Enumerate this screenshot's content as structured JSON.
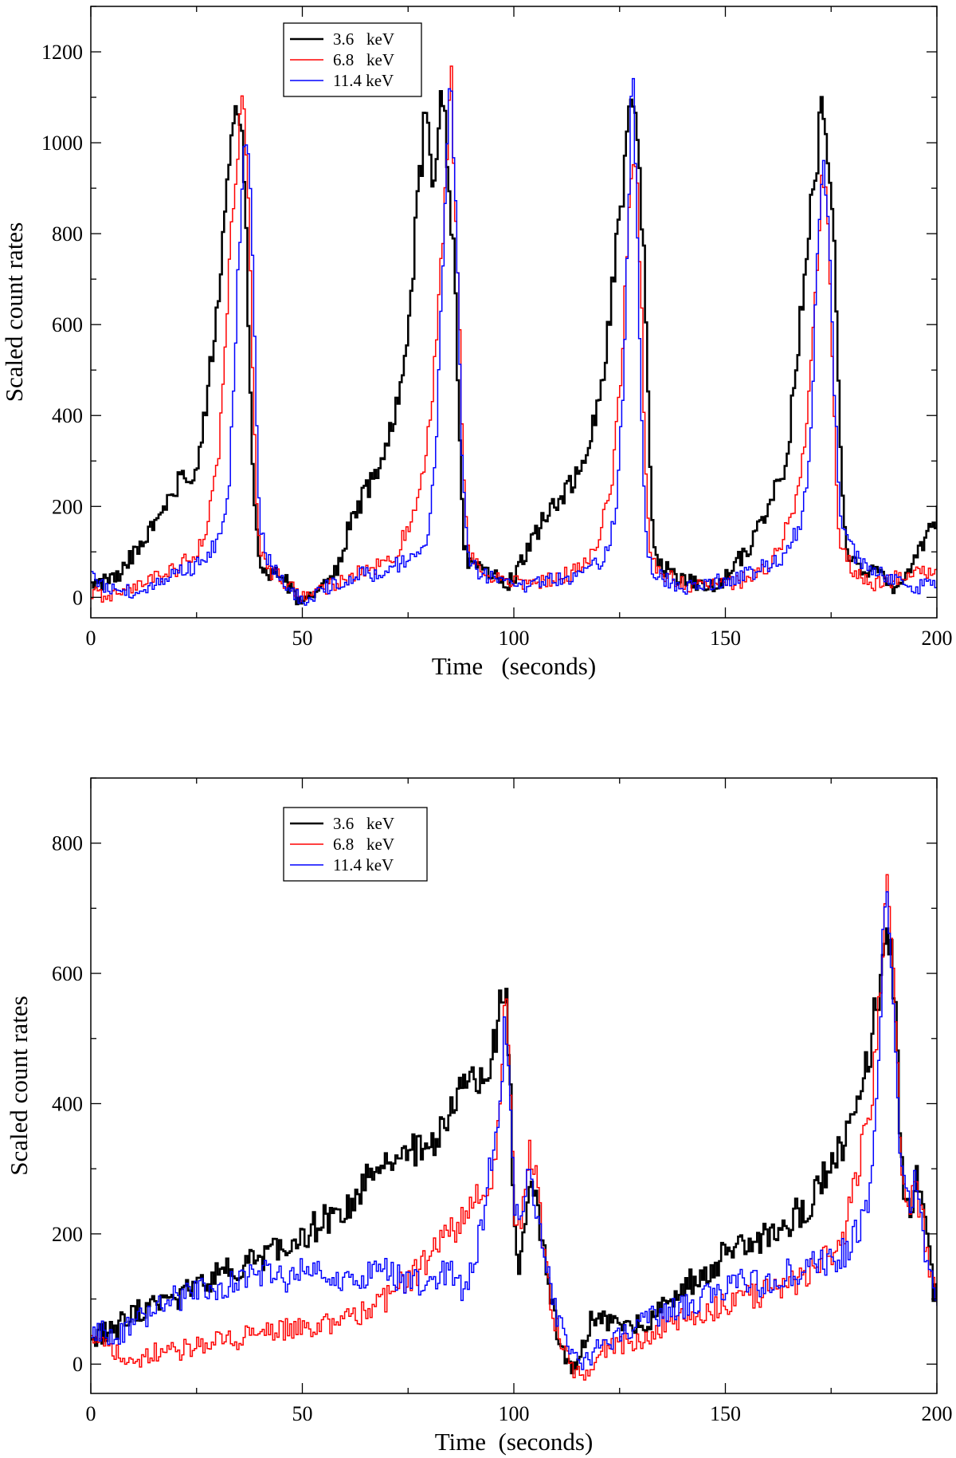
{
  "chart_data": [
    {
      "type": "line",
      "panel": "top",
      "title": "",
      "xlabel": "Time   (seconds)",
      "ylabel": "Scaled count rates",
      "xlim": [
        0,
        200
      ],
      "ylim": [
        -45,
        1300
      ],
      "x_ticks": [
        0,
        50,
        100,
        150,
        200
      ],
      "y_ticks": [
        0,
        200,
        400,
        600,
        800,
        1000,
        1200
      ],
      "legend_position": "top-left",
      "series": [
        {
          "name": "3.6   keV",
          "color": "#000000",
          "step": 0.5,
          "width": 2.6,
          "x": [
            0,
            4,
            8,
            10,
            14,
            18,
            20,
            22,
            24,
            26,
            27,
            28,
            29,
            30,
            31,
            32,
            33,
            34,
            35,
            36,
            37,
            38,
            39,
            40,
            41,
            45,
            48,
            50,
            55,
            58,
            60,
            62,
            65,
            68,
            70,
            72,
            74,
            75,
            76,
            77,
            78,
            79,
            80,
            81,
            82,
            83,
            84,
            85,
            86,
            87,
            88,
            89,
            90,
            95,
            98,
            100,
            105,
            108,
            110,
            112,
            114,
            116,
            118,
            120,
            121,
            122,
            123,
            124,
            125,
            126,
            127,
            128,
            129,
            130,
            131,
            132,
            133,
            134,
            140,
            143,
            145,
            150,
            152,
            155,
            158,
            160,
            162,
            164,
            165,
            166,
            167,
            168,
            169,
            170,
            171,
            172,
            173,
            174,
            175,
            176,
            177,
            178,
            180,
            185,
            188,
            190,
            195,
            200
          ],
          "y": [
            20,
            40,
            60,
            100,
            140,
            200,
            240,
            270,
            240,
            320,
            400,
            480,
            560,
            650,
            780,
            900,
            1000,
            1080,
            1040,
            1000,
            700,
            350,
            150,
            90,
            60,
            50,
            10,
            -20,
            30,
            60,
            120,
            180,
            230,
            280,
            340,
            400,
            500,
            600,
            700,
            840,
            940,
            1050,
            1020,
            900,
            960,
            1120,
            1000,
            850,
            750,
            400,
            130,
            90,
            70,
            50,
            30,
            40,
            140,
            180,
            200,
            230,
            250,
            290,
            340,
            420,
            460,
            560,
            640,
            760,
            860,
            900,
            1030,
            1110,
            1000,
            900,
            700,
            350,
            130,
            70,
            40,
            30,
            20,
            40,
            70,
            100,
            150,
            200,
            250,
            290,
            340,
            440,
            540,
            640,
            740,
            850,
            900,
            1000,
            1110,
            1000,
            900,
            700,
            400,
            150,
            70,
            60,
            40,
            20,
            90,
            180
          ]
        },
        {
          "name": "6.8   keV",
          "color": "#ff0000",
          "step": 0.5,
          "width": 1.5,
          "x": [
            0,
            5,
            10,
            15,
            20,
            25,
            28,
            29,
            30,
            31,
            32,
            33,
            34,
            35,
            36,
            37,
            38,
            39,
            40,
            42,
            45,
            50,
            55,
            60,
            65,
            70,
            72,
            74,
            76,
            78,
            79,
            80,
            81,
            82,
            83,
            84,
            85,
            86,
            87,
            88,
            89,
            90,
            95,
            100,
            105,
            110,
            115,
            118,
            120,
            121,
            122,
            123,
            124,
            125,
            126,
            127,
            128,
            129,
            130,
            131,
            132,
            133,
            135,
            140,
            145,
            150,
            155,
            160,
            162,
            164,
            166,
            168,
            169,
            170,
            171,
            172,
            173,
            174,
            175,
            176,
            177,
            180,
            185,
            190,
            195,
            200
          ],
          "y": [
            10,
            0,
            20,
            40,
            60,
            100,
            180,
            250,
            300,
            420,
            580,
            760,
            880,
            1000,
            1080,
            950,
            600,
            250,
            100,
            60,
            40,
            0,
            20,
            40,
            60,
            80,
            100,
            130,
            170,
            230,
            300,
            380,
            480,
            620,
            780,
            920,
            1200,
            900,
            700,
            300,
            120,
            80,
            50,
            30,
            30,
            40,
            60,
            90,
            120,
            160,
            200,
            250,
            330,
            450,
            620,
            840,
            1000,
            950,
            700,
            320,
            120,
            80,
            50,
            30,
            20,
            30,
            40,
            70,
            90,
            140,
            200,
            280,
            360,
            460,
            620,
            800,
            950,
            850,
            650,
            300,
            110,
            60,
            30,
            40,
            50,
            60
          ]
        },
        {
          "name": "11.4 keV",
          "color": "#0000ff",
          "step": 0.5,
          "width": 1.5,
          "x": [
            0,
            5,
            10,
            15,
            20,
            25,
            30,
            32,
            33,
            34,
            35,
            36,
            37,
            38,
            39,
            40,
            42,
            45,
            50,
            55,
            60,
            65,
            70,
            75,
            78,
            80,
            81,
            82,
            83,
            84,
            85,
            86,
            87,
            88,
            89,
            90,
            95,
            100,
            105,
            110,
            115,
            120,
            122,
            124,
            125,
            126,
            127,
            128,
            129,
            130,
            131,
            132,
            133,
            135,
            140,
            145,
            150,
            155,
            160,
            165,
            168,
            170,
            171,
            172,
            173,
            174,
            175,
            176,
            177,
            180,
            185,
            190,
            195,
            200
          ],
          "y": [
            40,
            20,
            10,
            30,
            50,
            70,
            120,
            180,
            300,
            500,
            750,
            950,
            1010,
            850,
            450,
            150,
            80,
            40,
            -10,
            20,
            40,
            50,
            60,
            80,
            110,
            150,
            250,
            420,
            700,
            950,
            1150,
            950,
            600,
            250,
            100,
            70,
            40,
            20,
            30,
            40,
            50,
            70,
            110,
            180,
            300,
            500,
            800,
            1170,
            900,
            500,
            150,
            80,
            60,
            40,
            20,
            30,
            40,
            50,
            70,
            100,
            180,
            300,
            550,
            800,
            990,
            900,
            700,
            400,
            200,
            100,
            60,
            40,
            20,
            30
          ]
        }
      ]
    },
    {
      "type": "line",
      "panel": "bottom",
      "title": "",
      "xlabel": "Time  (seconds)",
      "ylabel": "Scaled count rates",
      "xlim": [
        0,
        200
      ],
      "ylim": [
        -45,
        900
      ],
      "x_ticks": [
        0,
        50,
        100,
        150,
        200
      ],
      "y_ticks": [
        0,
        200,
        400,
        600,
        800
      ],
      "legend_position": "top-left",
      "series": [
        {
          "name": "3.6   keV",
          "color": "#000000",
          "step": 0.5,
          "width": 2.6,
          "x": [
            0,
            5,
            10,
            15,
            20,
            25,
            30,
            35,
            40,
            45,
            50,
            55,
            60,
            65,
            70,
            75,
            80,
            85,
            88,
            90,
            92,
            94,
            95,
            96,
            97,
            98,
            99,
            100,
            101,
            102,
            103,
            104,
            105,
            106,
            107,
            108,
            110,
            112,
            114,
            116,
            118,
            120,
            125,
            130,
            135,
            140,
            145,
            150,
            155,
            160,
            165,
            170,
            175,
            178,
            180,
            182,
            184,
            185,
            186,
            187,
            188,
            189,
            190,
            191,
            192,
            193,
            194,
            195,
            196,
            197,
            198,
            199,
            200
          ],
          "y": [
            40,
            50,
            80,
            90,
            100,
            120,
            140,
            150,
            160,
            180,
            200,
            220,
            240,
            280,
            300,
            320,
            340,
            380,
            420,
            430,
            440,
            460,
            480,
            520,
            560,
            600,
            460,
            220,
            150,
            170,
            230,
            270,
            280,
            220,
            170,
            130,
            60,
            20,
            -10,
            20,
            60,
            70,
            60,
            60,
            80,
            120,
            140,
            170,
            180,
            200,
            220,
            250,
            300,
            340,
            380,
            430,
            470,
            520,
            560,
            600,
            680,
            660,
            560,
            420,
            280,
            230,
            250,
            280,
            270,
            220,
            170,
            120,
            100
          ]
        },
        {
          "name": "6.8   keV",
          "color": "#ff0000",
          "step": 0.5,
          "width": 1.5,
          "x": [
            0,
            5,
            10,
            15,
            20,
            25,
            30,
            35,
            40,
            45,
            50,
            55,
            60,
            65,
            70,
            75,
            80,
            85,
            88,
            90,
            92,
            94,
            95,
            96,
            97,
            98,
            99,
            100,
            101,
            102,
            103,
            104,
            105,
            106,
            107,
            108,
            110,
            112,
            114,
            116,
            118,
            120,
            125,
            130,
            135,
            140,
            145,
            150,
            155,
            160,
            165,
            170,
            175,
            178,
            180,
            182,
            184,
            185,
            186,
            187,
            188,
            189,
            190,
            191,
            192,
            193,
            194,
            195,
            196,
            197,
            198,
            199,
            200
          ],
          "y": [
            30,
            20,
            0,
            20,
            20,
            30,
            40,
            40,
            50,
            50,
            60,
            60,
            70,
            80,
            100,
            130,
            160,
            200,
            220,
            240,
            260,
            280,
            300,
            340,
            420,
            560,
            450,
            250,
            200,
            240,
            300,
            320,
            300,
            240,
            180,
            130,
            60,
            20,
            -10,
            -20,
            -10,
            20,
            30,
            40,
            60,
            70,
            80,
            90,
            100,
            110,
            120,
            140,
            170,
            200,
            260,
            320,
            380,
            440,
            520,
            620,
            720,
            700,
            540,
            400,
            280,
            240,
            250,
            260,
            250,
            200,
            160,
            120,
            90
          ]
        },
        {
          "name": "11.4 keV",
          "color": "#0000ff",
          "step": 0.5,
          "width": 1.5,
          "x": [
            0,
            5,
            10,
            15,
            20,
            25,
            30,
            35,
            40,
            45,
            50,
            55,
            60,
            65,
            70,
            75,
            80,
            85,
            88,
            90,
            92,
            94,
            95,
            96,
            97,
            98,
            99,
            100,
            101,
            102,
            103,
            104,
            105,
            106,
            107,
            108,
            110,
            112,
            114,
            116,
            118,
            120,
            125,
            130,
            135,
            140,
            145,
            150,
            155,
            160,
            165,
            170,
            175,
            178,
            180,
            182,
            184,
            185,
            186,
            187,
            188,
            189,
            190,
            191,
            192,
            193,
            194,
            195,
            196,
            197,
            198,
            199,
            200
          ],
          "y": [
            60,
            40,
            60,
            80,
            100,
            110,
            120,
            130,
            140,
            130,
            140,
            140,
            120,
            140,
            140,
            130,
            120,
            150,
            110,
            140,
            200,
            280,
            330,
            360,
            420,
            540,
            430,
            260,
            220,
            240,
            270,
            280,
            260,
            220,
            180,
            140,
            80,
            40,
            10,
            0,
            10,
            30,
            40,
            60,
            80,
            90,
            100,
            120,
            130,
            120,
            140,
            150,
            160,
            170,
            190,
            210,
            240,
            300,
            420,
            600,
            780,
            640,
            480,
            360,
            280,
            250,
            260,
            280,
            240,
            190,
            150,
            120,
            100
          ]
        }
      ]
    }
  ]
}
